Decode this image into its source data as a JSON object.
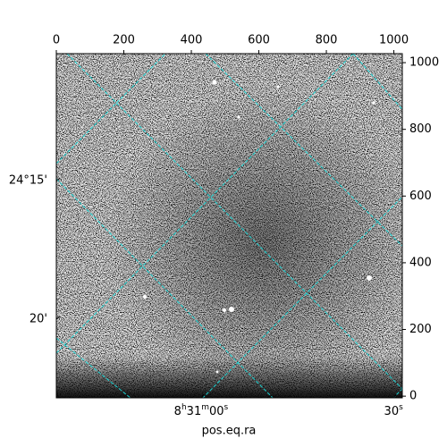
{
  "chart_data": {
    "type": "image",
    "xlabel": "pos.eq.ra",
    "xlim": [
      0,
      1025
    ],
    "ylim": [
      -5,
      1027
    ],
    "xticks": [
      0,
      200,
      400,
      600,
      800,
      1000
    ],
    "yticks": [
      0,
      200,
      400,
      600,
      800,
      1000
    ],
    "ra_ticks": [
      {
        "value": 429,
        "label": "8h31m00s"
      },
      {
        "value": 999,
        "label": "30s"
      }
    ],
    "dec_ticks": [
      {
        "value": 646,
        "label": "24°15'"
      },
      {
        "value": 231,
        "label": "20'"
      }
    ],
    "grid_color": "#1ad6d6"
  }
}
